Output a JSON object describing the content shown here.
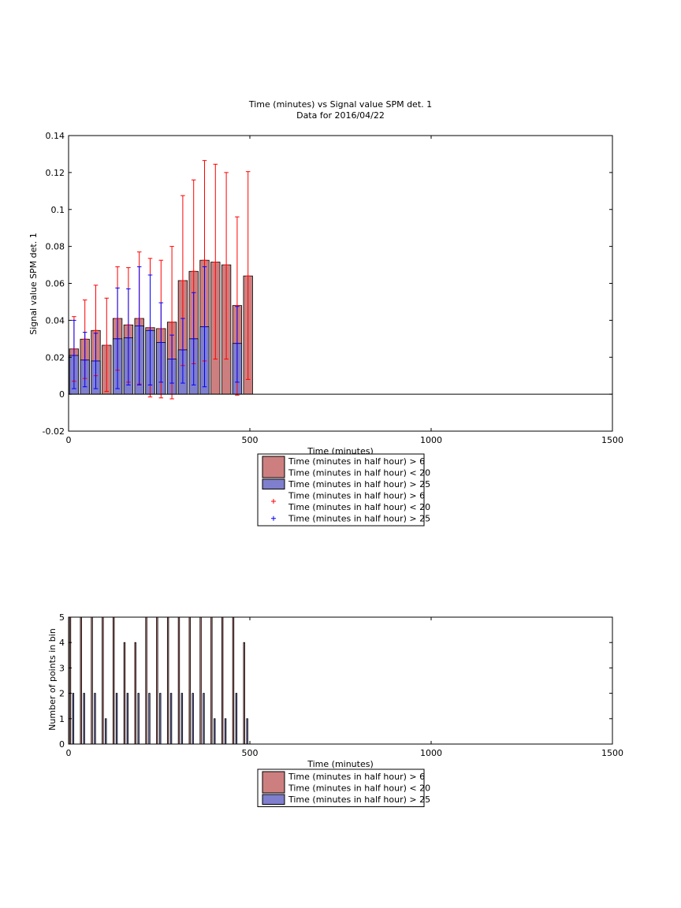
{
  "chart_data": [
    {
      "type": "bar",
      "title": "Time (minutes) vs Signal value SPM det. 1",
      "subtitle": "Data for 2016/04/22",
      "xlabel": "Time (minutes)",
      "ylabel": "Signal value SPM det. 1",
      "xlim": [
        0,
        1500
      ],
      "ylim": [
        -0.02,
        0.14
      ],
      "xticks": [
        "0",
        "500",
        "1000",
        "1500"
      ],
      "xtick_values": [
        0,
        500,
        1000,
        1500
      ],
      "yticks": [
        "-0.02",
        "0",
        "0.02",
        "0.04",
        "0.06",
        "0.08",
        "0.1",
        "0.12",
        "0.14"
      ],
      "ytick_values": [
        -0.02,
        0,
        0.02,
        0.04,
        0.06,
        0.08,
        0.1,
        0.12,
        0.14
      ],
      "x": [
        15,
        45,
        75,
        105,
        135,
        165,
        195,
        225,
        255,
        285,
        315,
        345,
        375,
        405,
        435,
        465,
        495
      ],
      "series": [
        {
          "name": "Time (minutes in half hour) > 6\nTime (minutes in half hour) < 20",
          "color": "#cd7f7f",
          "edge": "#8b3a3a",
          "values": [
            0.0245,
            0.0298,
            0.0345,
            0.0265,
            0.041,
            0.0375,
            0.041,
            0.036,
            0.0355,
            0.039,
            0.0615,
            0.0665,
            0.0725,
            0.0715,
            0.07,
            0.048,
            0.064
          ],
          "error_low": [
            0.007,
            0.0085,
            0.01,
            0.0015,
            0.013,
            0.0065,
            0.0055,
            -0.0015,
            -0.002,
            -0.0025,
            0.0155,
            0.0165,
            0.018,
            0.019,
            0.019,
            -0.0005,
            0.008
          ],
          "error_high": [
            0.042,
            0.051,
            0.059,
            0.052,
            0.069,
            0.0685,
            0.077,
            0.0735,
            0.0725,
            0.08,
            0.1075,
            0.116,
            0.1265,
            0.1245,
            0.12,
            0.096,
            0.1205
          ]
        },
        {
          "name": "Time (minutes in half hour) > 25",
          "color": "#7f7fcd",
          "edge": "#3a3a8b",
          "values": [
            0.021,
            0.0185,
            0.018,
            null,
            0.03,
            0.0305,
            0.037,
            0.0345,
            0.028,
            0.019,
            0.024,
            0.03,
            0.0365,
            null,
            null,
            0.0275,
            null
          ],
          "error_low": [
            0.003,
            0.004,
            0.003,
            null,
            0.003,
            0.005,
            0.005,
            0.005,
            0.0065,
            0.006,
            0.006,
            0.005,
            0.004,
            null,
            null,
            0.0065,
            null
          ],
          "error_high": [
            0.04,
            0.0335,
            0.033,
            null,
            0.0575,
            0.057,
            0.069,
            0.0645,
            0.0495,
            0.032,
            0.041,
            0.055,
            0.069,
            null,
            null,
            0.0475,
            null
          ]
        }
      ],
      "legend": {
        "placement": "below",
        "entries": [
          {
            "kind": "patch",
            "color": "#cd7f7f",
            "lines": [
              "Time (minutes in half hour) > 6",
              "Time (minutes in half hour) < 20"
            ]
          },
          {
            "kind": "patch",
            "color": "#7f7fcd",
            "lines": [
              "Time (minutes in half hour) > 25"
            ]
          },
          {
            "kind": "marker",
            "color": "#ff0000",
            "lines": [
              "Time (minutes in half hour) > 6",
              "Time (minutes in half hour) < 20"
            ]
          },
          {
            "kind": "marker",
            "color": "#0000ff",
            "lines": [
              "Time (minutes in half hour) > 25"
            ]
          }
        ]
      }
    },
    {
      "type": "bar",
      "xlabel": "Time (minutes)",
      "ylabel": "Number of points in bin",
      "xlim": [
        0,
        1500
      ],
      "ylim": [
        0,
        5
      ],
      "xticks": [
        "0",
        "500",
        "1000",
        "1500"
      ],
      "xtick_values": [
        0,
        500,
        1000,
        1500
      ],
      "yticks": [
        "0",
        "1",
        "2",
        "3",
        "4",
        "5"
      ],
      "ytick_values": [
        0,
        1,
        2,
        3,
        4,
        5
      ],
      "x": [
        15,
        45,
        75,
        105,
        135,
        165,
        195,
        225,
        255,
        285,
        315,
        345,
        375,
        405,
        435,
        465,
        495
      ],
      "series": [
        {
          "name": "Time (minutes in half hour) > 6\nTime (minutes in half hour) < 20",
          "color": "#cd7f7f",
          "values": [
            5,
            5,
            5,
            5,
            5,
            4,
            4,
            5,
            5,
            5,
            5,
            5,
            5,
            5,
            5,
            5,
            4
          ]
        },
        {
          "name": "Time (minutes in half hour) > 25",
          "color": "#7f7fcd",
          "values": [
            2,
            2,
            2,
            1,
            2,
            2,
            2,
            2,
            2,
            2,
            2,
            2,
            2,
            1,
            1,
            2,
            1
          ]
        }
      ],
      "legend": {
        "placement": "below",
        "entries": [
          {
            "kind": "patch",
            "color": "#cd7f7f",
            "lines": [
              "Time (minutes in half hour) > 6",
              "Time (minutes in half hour) < 20"
            ]
          },
          {
            "kind": "patch",
            "color": "#7f7fcd",
            "lines": [
              "Time (minutes in half hour) > 25"
            ]
          }
        ]
      }
    }
  ]
}
